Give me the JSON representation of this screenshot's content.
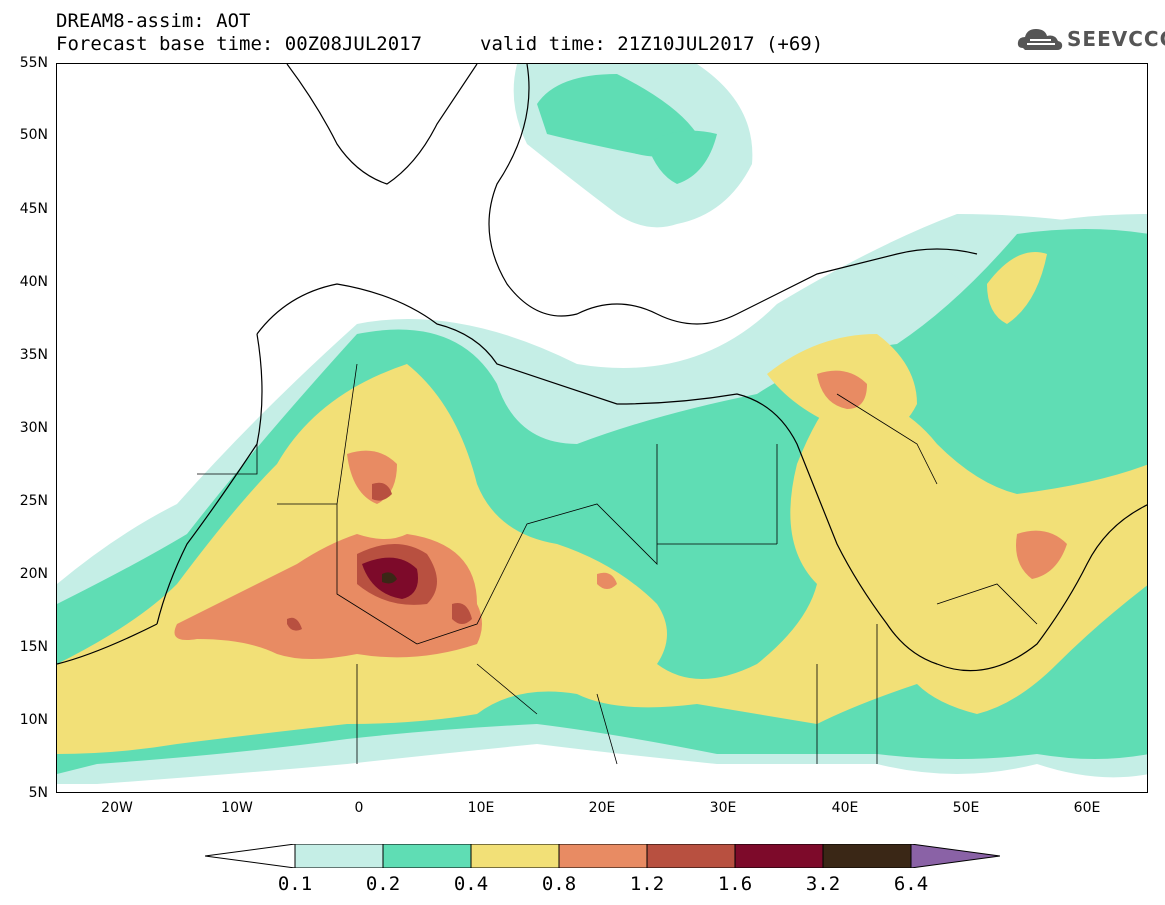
{
  "header": {
    "title": "DREAM8-assim: AOT",
    "base_time": "Forecast base time: 00Z08JUL2017",
    "valid_time": "valid time: 21Z10JUL2017 (+69)"
  },
  "logo": {
    "text": "SEEVCCC",
    "icon": "cloud-icon"
  },
  "map": {
    "lat_labels": [
      "55N",
      "50N",
      "45N",
      "40N",
      "35N",
      "30N",
      "25N",
      "20N",
      "15N",
      "10N",
      "5N"
    ],
    "lon_labels": [
      "20W",
      "10W",
      "0",
      "10E",
      "20E",
      "30E",
      "40E",
      "50E",
      "60E"
    ],
    "extent": {
      "lon_min": -25,
      "lon_max": 65,
      "lat_min": 5,
      "lat_max": 55
    }
  },
  "colorbar": {
    "levels": [
      "0.1",
      "0.2",
      "0.4",
      "0.8",
      "1.2",
      "1.6",
      "3.2",
      "6.4"
    ],
    "colors": [
      "#c5eee6",
      "#5fddb4",
      "#f2e077",
      "#e88b63",
      "#b85040",
      "#7d0a2a",
      "#3a2716",
      "#8a62a6"
    ]
  }
}
